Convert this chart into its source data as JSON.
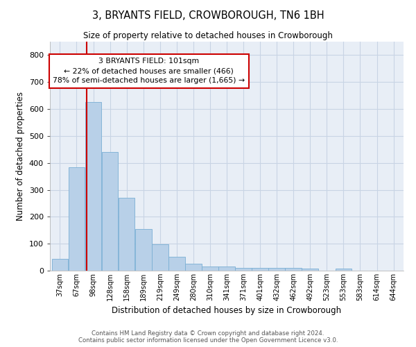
{
  "title": "3, BRYANTS FIELD, CROWBOROUGH, TN6 1BH",
  "subtitle": "Size of property relative to detached houses in Crowborough",
  "xlabel": "Distribution of detached houses by size in Crowborough",
  "ylabel": "Number of detached properties",
  "bar_labels": [
    "37sqm",
    "67sqm",
    "98sqm",
    "128sqm",
    "158sqm",
    "189sqm",
    "219sqm",
    "249sqm",
    "280sqm",
    "310sqm",
    "341sqm",
    "371sqm",
    "401sqm",
    "432sqm",
    "462sqm",
    "492sqm",
    "523sqm",
    "553sqm",
    "583sqm",
    "614sqm",
    "644sqm"
  ],
  "bar_values": [
    45,
    385,
    625,
    440,
    270,
    155,
    97,
    52,
    27,
    15,
    15,
    10,
    10,
    10,
    10,
    8,
    0,
    7,
    0,
    0,
    0
  ],
  "bar_color": "#b8d0e8",
  "bar_edge_color": "#7aafd4",
  "grid_color": "#c8d4e4",
  "bg_color": "#e8eef6",
  "line_color": "#cc0000",
  "annotation_text": "3 BRYANTS FIELD: 101sqm\n← 22% of detached houses are smaller (466)\n78% of semi-detached houses are larger (1,665) →",
  "annotation_box_color": "#ffffff",
  "annotation_box_edge": "#cc0000",
  "ylim": [
    0,
    850
  ],
  "yticks": [
    0,
    100,
    200,
    300,
    400,
    500,
    600,
    700,
    800
  ],
  "footer_line1": "Contains HM Land Registry data © Crown copyright and database right 2024.",
  "footer_line2": "Contains public sector information licensed under the Open Government Licence v3.0."
}
